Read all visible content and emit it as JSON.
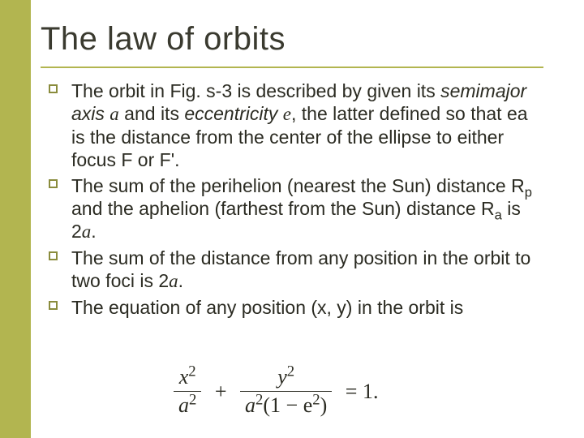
{
  "colors": {
    "sidebar": "#b2b550",
    "rule": "#b2b550",
    "text": "#2b2b22",
    "title": "#3a3a2f",
    "bullet_border": "#8a8c3d",
    "background": "#ffffff"
  },
  "typography": {
    "title_fontsize": 40,
    "body_fontsize": 23,
    "equation_fontsize": 26,
    "body_font": "Arial",
    "math_font": "Times New Roman"
  },
  "title": "The law of orbits",
  "bullets": [
    {
      "parts": [
        {
          "t": "The orbit in Fig. s-3 is described by given its "
        },
        {
          "t": "semimajor axis ",
          "italic": true
        },
        {
          "t": "a",
          "mathvar": true
        },
        {
          "t": " and its "
        },
        {
          "t": "eccentricity ",
          "italic": true
        },
        {
          "t": "e",
          "mathvar": true
        },
        {
          "t": ", the latter defined so that ea is the distance from the center of the ellipse to either focus F or F'."
        }
      ]
    },
    {
      "parts": [
        {
          "t": "The sum of the perihelion (nearest the Sun) distance R"
        },
        {
          "t": "p",
          "sub": true
        },
        {
          "t": " and the aphelion (farthest from the Sun) distance R"
        },
        {
          "t": "a",
          "sub": true
        },
        {
          "t": " is 2"
        },
        {
          "t": "a",
          "mathvar": true
        },
        {
          "t": "."
        }
      ]
    },
    {
      "parts": [
        {
          "t": "The sum of the distance from any position in the orbit to two foci is 2"
        },
        {
          "t": "a",
          "mathvar": true
        },
        {
          "t": "."
        }
      ]
    },
    {
      "parts": [
        {
          "t": "The equation of any position (x, y) in the orbit is"
        }
      ]
    }
  ],
  "equation": {
    "term1": {
      "num": "x",
      "num_exp": "2",
      "den": "a",
      "den_exp": "2"
    },
    "op": "+",
    "term2": {
      "num": "y",
      "num_exp": "2",
      "den_pre": "a",
      "den_pre_exp": "2",
      "den_paren": "(1 − e",
      "den_paren_exp": "2",
      "den_paren_close": ")"
    },
    "rhs": "= 1."
  }
}
